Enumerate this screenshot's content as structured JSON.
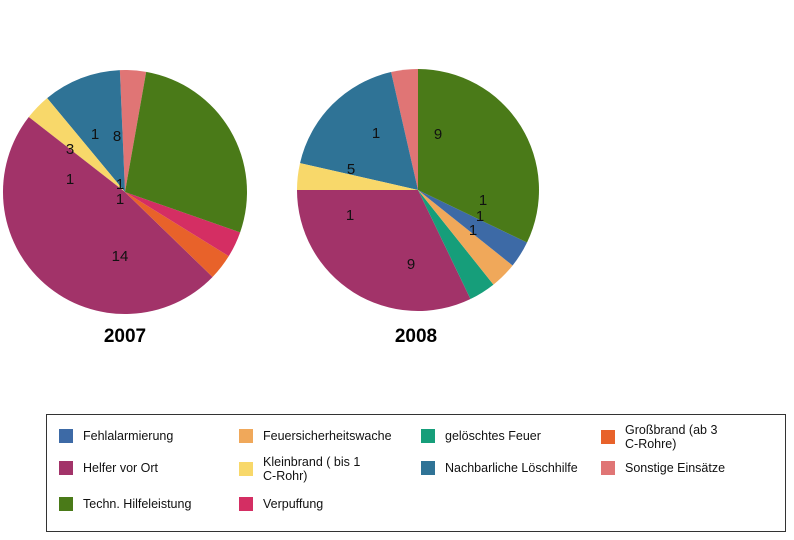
{
  "chart_data": [
    {
      "type": "pie",
      "title": "2007",
      "slices": [
        {
          "category": "Techn. Hilfeleistung",
          "value": 8,
          "label": "8"
        },
        {
          "category": "Verpuffung",
          "value": 1,
          "label": "1"
        },
        {
          "category": "Großbrand (ab 3 C-Rohre)",
          "value": 1,
          "label": "1"
        },
        {
          "category": "Helfer vor Ort",
          "value": 14,
          "label": "14"
        },
        {
          "category": "Kleinbrand ( bis 1 C-Rohr)",
          "value": 1,
          "label": "1"
        },
        {
          "category": "Nachbarliche Löschhilfe",
          "value": 3,
          "label": "3"
        },
        {
          "category": "Sonstige Einsätze",
          "value": 1,
          "label": "1"
        }
      ]
    },
    {
      "type": "pie",
      "title": "2008",
      "slices": [
        {
          "category": "Techn. Hilfeleistung",
          "value": 9,
          "label": "9"
        },
        {
          "category": "Fehlalarmierung",
          "value": 1,
          "label": "1"
        },
        {
          "category": "Feuersicherheitswache",
          "value": 1,
          "label": "1"
        },
        {
          "category": "gelöschtes Feuer",
          "value": 1,
          "label": "1"
        },
        {
          "category": "Helfer vor Ort",
          "value": 9,
          "label": "9"
        },
        {
          "category": "Kleinbrand ( bis 1 C-Rohr)",
          "value": 1,
          "label": "1"
        },
        {
          "category": "Nachbarliche Löschhilfe",
          "value": 5,
          "label": "5"
        },
        {
          "category": "Sonstige Einsätze",
          "value": 1,
          "label": "1"
        }
      ]
    }
  ],
  "colors": {
    "Fehlalarmierung": "#3d6aa6",
    "Feuersicherheitswache": "#f0a85a",
    "gelöschtes Feuer": "#169e7a",
    "Großbrand (ab 3 C-Rohre)": "#e8622a",
    "Helfer vor Ort": "#a23369",
    "Kleinbrand ( bis 1 C-Rohr)": "#f8d86a",
    "Nachbarliche Löschhilfe": "#2f7396",
    "Sonstige Einsätze": "#e07575",
    "Techn. Hilfeleistung": "#4a7a18",
    "Verpuffung": "#d42e63"
  },
  "legend": [
    {
      "category": "Fehlalarmierung",
      "text": "Fehlalarmierung"
    },
    {
      "category": "Feuersicherheitswache",
      "text": "Feuersicherheitswache"
    },
    {
      "category": "gelöschtes Feuer",
      "text": "gelöschtes Feuer"
    },
    {
      "category": "Großbrand (ab 3 C-Rohre)",
      "text": "Großbrand   (ab  3\nC-Rohre)"
    },
    {
      "category": "Helfer vor Ort",
      "text": "Helfer vor Ort"
    },
    {
      "category": "Kleinbrand ( bis 1 C-Rohr)",
      "text": "Kleinbrand ( bis 1\nC-Rohr)"
    },
    {
      "category": "Nachbarliche Löschhilfe",
      "text": "Nachbarliche Löschhilfe"
    },
    {
      "category": "Sonstige Einsätze",
      "text": "Sonstige Einsätze"
    },
    {
      "category": "Techn. Hilfeleistung",
      "text": "Techn. Hilfeleistung"
    },
    {
      "category": "Verpuffung",
      "text": "Verpuffung"
    }
  ]
}
